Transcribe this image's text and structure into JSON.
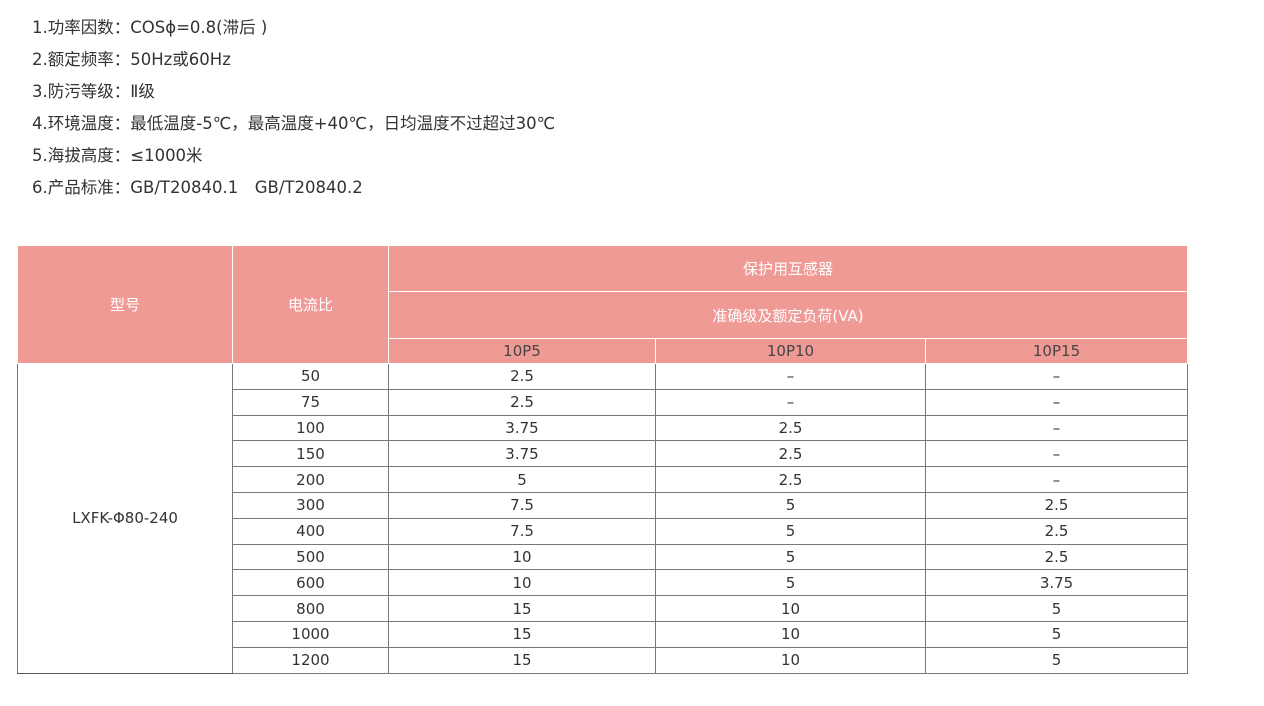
{
  "specs": [
    "1.功率因数：COSϕ=0.8(滞后 )",
    "2.额定频率：50Hz或60Hz",
    "3.防污等级：Ⅱ级",
    "4.环境温度：最低温度-5℃，最高温度+40℃，日均温度不过超过30℃",
    "5.海拔高度：≤1000米",
    "6.产品标准：GB/T20840.1　GB/T20840.2"
  ],
  "table": {
    "header_color": "#f09a96",
    "col_model": "型号",
    "col_ratio": "电流比",
    "group": "保护用互感器",
    "subgroup": "准确级及额定负荷(VA)",
    "classes": [
      "10P5",
      "10P10",
      "10P15"
    ],
    "model": "LXFK-Φ80-240",
    "rows": [
      [
        "50",
        "2.5",
        "–",
        "–"
      ],
      [
        "75",
        "2.5",
        "–",
        "–"
      ],
      [
        "100",
        "3.75",
        "2.5",
        "–"
      ],
      [
        "150",
        "3.75",
        "2.5",
        "–"
      ],
      [
        "200",
        "5",
        "2.5",
        "–"
      ],
      [
        "300",
        "7.5",
        "5",
        "2.5"
      ],
      [
        "400",
        "7.5",
        "5",
        "2.5"
      ],
      [
        "500",
        "10",
        "5",
        "2.5"
      ],
      [
        "600",
        "10",
        "5",
        "3.75"
      ],
      [
        "800",
        "15",
        "10",
        "5"
      ],
      [
        "1000",
        "15",
        "10",
        "5"
      ],
      [
        "1200",
        "15",
        "10",
        "5"
      ]
    ]
  }
}
